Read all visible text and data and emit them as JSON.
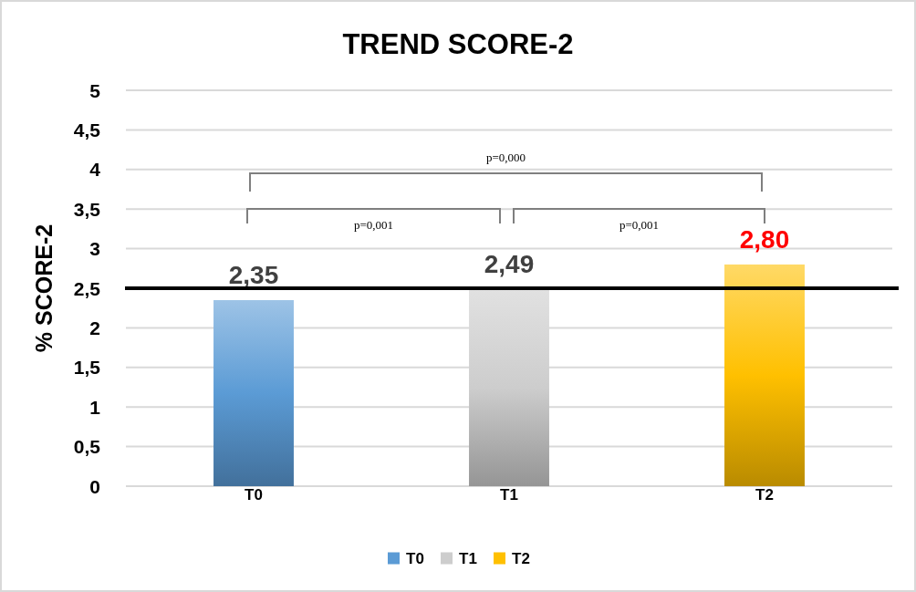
{
  "chart_data": {
    "type": "bar",
    "title": "TREND SCORE-2",
    "ylabel": "% SCORE-2",
    "categories": [
      "T0",
      "T1",
      "T2"
    ],
    "stacked": true,
    "series": [
      {
        "name": "T0",
        "color": "#5b9bd5",
        "values": [
          2.35,
          null,
          null
        ],
        "value_labels": [
          "2,35",
          null,
          null
        ]
      },
      {
        "name": "T1",
        "color": "#cdcdcd",
        "values": [
          null,
          2.49,
          null
        ],
        "value_labels": [
          null,
          "2,49",
          null
        ]
      },
      {
        "name": "T2",
        "color": "#ffc000",
        "values": [
          null,
          null,
          2.8
        ],
        "value_labels": [
          null,
          null,
          "2,80"
        ]
      }
    ],
    "ylim": [
      0,
      5
    ],
    "yticks": [
      0,
      {
        "value": 0.5,
        "label": "0,5"
      },
      1,
      {
        "value": 1.5,
        "label": "1,5"
      },
      2,
      {
        "value": 2.5,
        "label": "2,5"
      },
      3,
      {
        "value": 3.5,
        "label": "3,5"
      },
      4,
      {
        "value": 4.5,
        "label": "4,5"
      },
      5
    ],
    "grid": "y",
    "legend": "bottom",
    "ref_lines": [
      {
        "axis": "y",
        "value": 2.5,
        "color": "#000000"
      }
    ],
    "annotations": [
      "p=0,000",
      "p=0,001",
      "p=0,001"
    ]
  }
}
